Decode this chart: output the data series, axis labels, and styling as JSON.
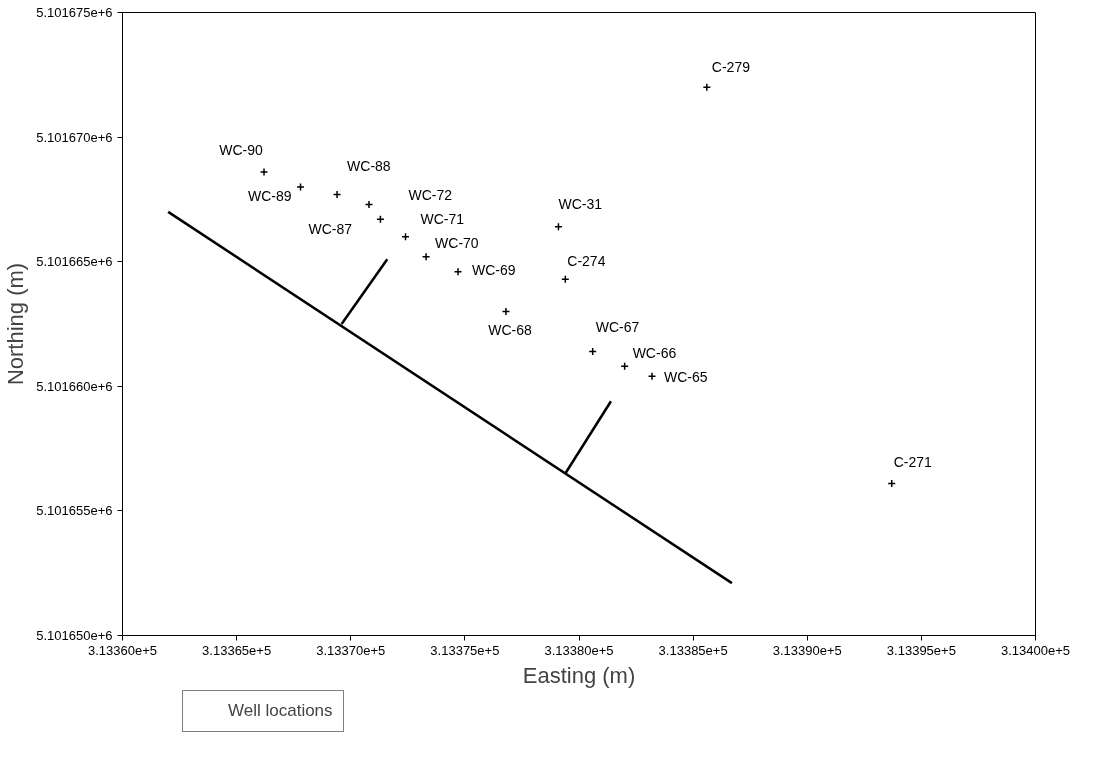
{
  "chart_data": {
    "type": "scatter",
    "xlabel": "Easting (m)",
    "ylabel": "Northing (m)",
    "xlim": [
      313360,
      313400
    ],
    "ylim": [
      5101650,
      5101675
    ],
    "xticks": [
      {
        "value": 313360,
        "label": "3.13360e+5"
      },
      {
        "value": 313365,
        "label": "3.13365e+5"
      },
      {
        "value": 313370,
        "label": "3.13370e+5"
      },
      {
        "value": 313375,
        "label": "3.13375e+5"
      },
      {
        "value": 313380,
        "label": "3.13380e+5"
      },
      {
        "value": 313385,
        "label": "3.13385e+5"
      },
      {
        "value": 313390,
        "label": "3.13390e+5"
      },
      {
        "value": 313395,
        "label": "3.13395e+5"
      },
      {
        "value": 313400,
        "label": "3.13400e+5"
      }
    ],
    "yticks": [
      {
        "value": 5101650,
        "label": "5.101650e+6"
      },
      {
        "value": 5101655,
        "label": "5.101655e+6"
      },
      {
        "value": 5101660,
        "label": "5.101660e+6"
      },
      {
        "value": 5101665,
        "label": "5.101665e+6"
      },
      {
        "value": 5101670,
        "label": "5.101670e+6"
      },
      {
        "value": 5101675,
        "label": "5.101675e+6"
      }
    ],
    "grid": false,
    "legend": "bottom left",
    "marker": "cross",
    "series": [
      {
        "name": "Well locations",
        "color": "#000000",
        "x": [
          313366.2,
          313367.8,
          313369.4,
          313370.8,
          313371.3,
          313372.4,
          313373.3,
          313374.7,
          313376.8,
          313379.1,
          313379.4,
          313380.6,
          313382.0,
          313383.2,
          313385.6,
          313393.7
        ],
        "values": [
          5101668.6,
          5101668.0,
          5101667.7,
          5101667.3,
          5101666.7,
          5101666.0,
          5101665.2,
          5101664.6,
          5101663.0,
          5101666.4,
          5101664.3,
          5101661.4,
          5101660.8,
          5101660.4,
          5101672.0,
          5101656.1
        ]
      },
      {
        "type": "line",
        "color": "#000000",
        "marker": "none",
        "x": [
          313362.0,
          313386.7
        ],
        "values": [
          5101667.0,
          5101652.1
        ]
      },
      {
        "type": "line",
        "color": "#000000",
        "marker": "none",
        "x": [
          313369.6,
          313371.6
        ],
        "values": [
          5101662.5,
          5101665.1
        ]
      },
      {
        "type": "line",
        "color": "#000000",
        "marker": "none",
        "x": [
          313379.4,
          313381.4
        ],
        "values": [
          5101656.5,
          5101659.4
        ]
      }
    ],
    "annotations": [
      {
        "text": "WC-90",
        "x": 313366.2,
        "y": 5101668.6
      },
      {
        "text": "WC-89",
        "x": 313367.8,
        "y": 5101668.0
      },
      {
        "text": "WC-88",
        "x": 313369.4,
        "y": 5101667.7
      },
      {
        "text": "WC-87",
        "x": 313370.8,
        "y": 5101667.3
      },
      {
        "text": "WC-72",
        "x": 313371.3,
        "y": 5101666.7
      },
      {
        "text": "WC-71",
        "x": 313372.4,
        "y": 5101666.0
      },
      {
        "text": "WC-70",
        "x": 313373.3,
        "y": 5101665.2
      },
      {
        "text": "WC-69",
        "x": 313374.7,
        "y": 5101664.6
      },
      {
        "text": "WC-68",
        "x": 313376.8,
        "y": 5101663.0
      },
      {
        "text": "WC-31",
        "x": 313379.1,
        "y": 5101666.4
      },
      {
        "text": "C-274",
        "x": 313379.4,
        "y": 5101664.3
      },
      {
        "text": "WC-67",
        "x": 313380.6,
        "y": 5101661.4
      },
      {
        "text": "WC-66",
        "x": 313382.0,
        "y": 5101660.8
      },
      {
        "text": "WC-65",
        "x": 313383.2,
        "y": 5101660.4
      },
      {
        "text": "C-279",
        "x": 313385.6,
        "y": 5101672.0
      },
      {
        "text": "C-271",
        "x": 313393.7,
        "y": 5101656.1
      }
    ]
  }
}
